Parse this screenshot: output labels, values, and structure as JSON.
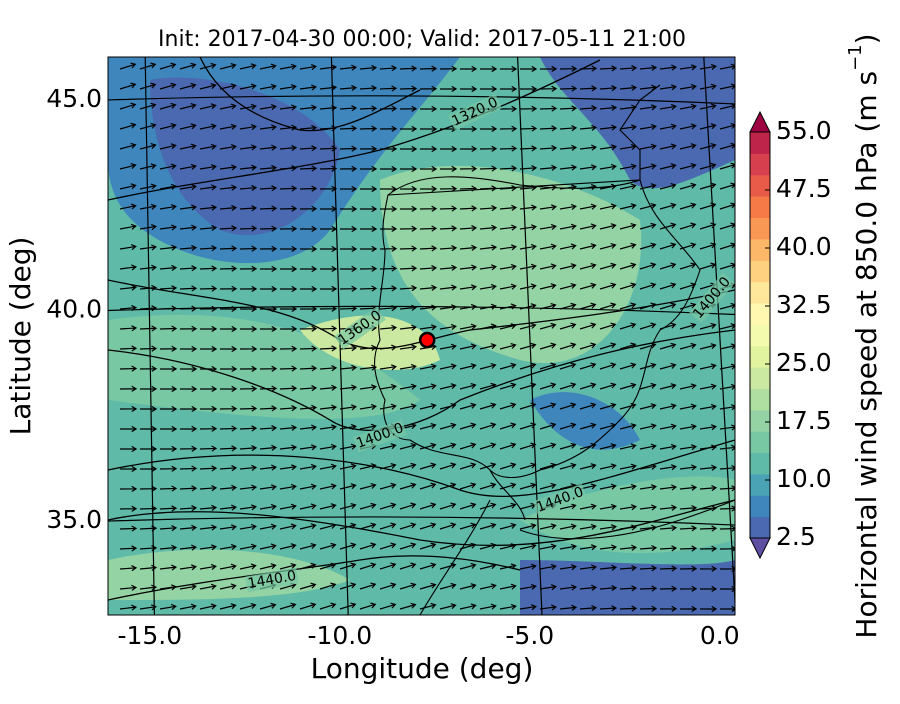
{
  "chart_data": {
    "type": "map",
    "title": "Init: 2017-04-30 00:00; Valid: 2017-05-11 21:00",
    "x_label": "Longitude (deg)",
    "y_label": "Latitude (deg)",
    "xlim": [
      -16.1,
      0.4
    ],
    "ylim": [
      32.77,
      46.02
    ],
    "xticks": [
      {
        "value": -15,
        "label": "-15.0"
      },
      {
        "value": -10,
        "label": "-10.0"
      },
      {
        "value": -5,
        "label": "-5.0"
      },
      {
        "value": 0,
        "label": "0.0"
      }
    ],
    "yticks": [
      {
        "value": 35,
        "label": "35.0"
      },
      {
        "value": 40,
        "label": "40.0"
      },
      {
        "value": 45,
        "label": "45.0"
      }
    ],
    "grid": true,
    "marker": {
      "lon": -7.7,
      "lat": 39.3,
      "color": "#ff0000"
    },
    "contour_labels": [
      {
        "value": 1320,
        "label": "1320.0"
      },
      {
        "value": 1360,
        "label": "1360.0"
      },
      {
        "value": 1400,
        "label": "1400.0"
      },
      {
        "value": 1400,
        "label": "1400.0"
      },
      {
        "value": 1440,
        "label": "1440.0"
      },
      {
        "value": 1440,
        "label": "1440.0"
      }
    ],
    "colorbar": {
      "label": [
        "Horizontal wind speed at 850.0 hPa (m s",
        "−1",
        ")"
      ],
      "lim": [
        2.5,
        55
      ],
      "ticks": [
        {
          "value": 2.5,
          "label": "2.5"
        },
        {
          "value": 10,
          "label": "10.0"
        },
        {
          "value": 17.5,
          "label": "17.5"
        },
        {
          "value": 25,
          "label": "25.0"
        },
        {
          "value": 32.5,
          "label": "32.5"
        },
        {
          "value": 40,
          "label": "40.0"
        },
        {
          "value": 47.5,
          "label": "47.5"
        },
        {
          "value": 55,
          "label": "55.0"
        }
      ],
      "colors": [
        "#5e4fa2",
        "#4a69b0",
        "#3f86bc",
        "#4aa2b5",
        "#5fbaa8",
        "#78c8a4",
        "#94d4a4",
        "#b0dfa2",
        "#cbe9a0",
        "#e2f3a0",
        "#f4faad",
        "#fef8b0",
        "#fee79a",
        "#fdd17f",
        "#fdb768",
        "#f99855",
        "#f57a48",
        "#e75b48",
        "#d6404e",
        "#be2449",
        "#9e0142"
      ]
    }
  }
}
